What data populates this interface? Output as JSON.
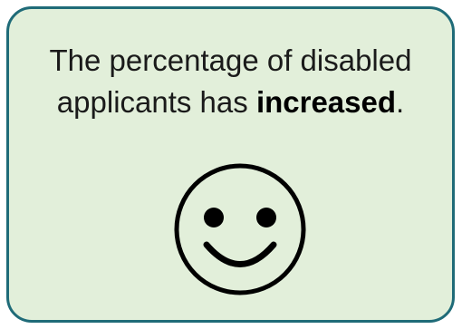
{
  "card": {
    "text_before": "The percentage of disabled applicants has ",
    "text_emphasis": "increased",
    "text_after": ".",
    "icon": "smiley-face-icon",
    "colors": {
      "background": "#e2efda",
      "border": "#1f6b78",
      "text": "#1a1a1a",
      "icon": "#000000"
    }
  }
}
